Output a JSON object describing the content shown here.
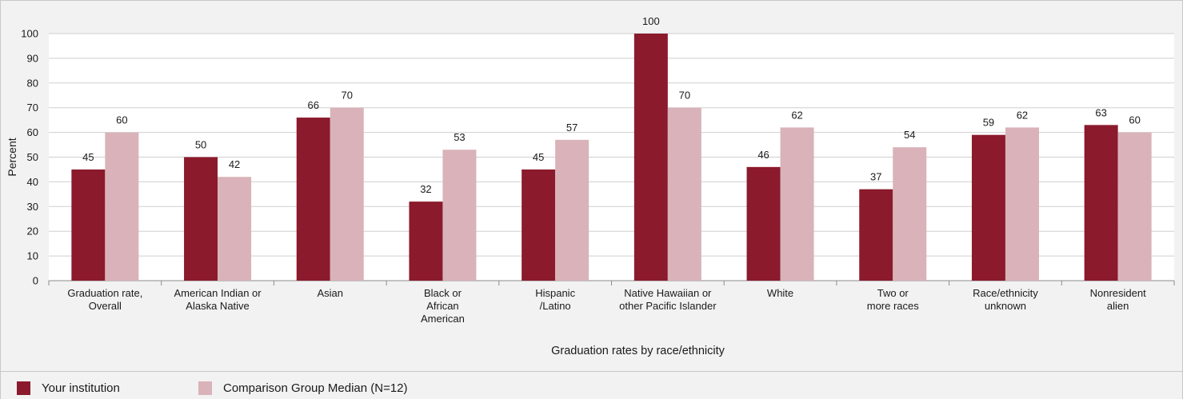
{
  "chart_data": {
    "type": "bar",
    "title": "",
    "xlabel": "Graduation rates by race/ethnicity",
    "ylabel": "Percent",
    "ylim": [
      0,
      100
    ],
    "yticks": [
      0,
      10,
      20,
      30,
      40,
      50,
      60,
      70,
      80,
      90,
      100
    ],
    "grid": true,
    "legend_position": "bottom",
    "categories": [
      [
        "Graduation rate,",
        "Overall"
      ],
      [
        "American Indian or",
        "Alaska Native"
      ],
      [
        "Asian"
      ],
      [
        "Black or",
        "African",
        "American"
      ],
      [
        "Hispanic",
        "/Latino"
      ],
      [
        "Native Hawaiian or",
        "other Pacific Islander"
      ],
      [
        "White"
      ],
      [
        "Two or",
        "more races"
      ],
      [
        "Race/ethnicity",
        "unknown"
      ],
      [
        "Nonresident",
        "alien"
      ]
    ],
    "series": [
      {
        "name": "Your institution",
        "color": "#8b1a2c",
        "values": [
          45,
          50,
          66,
          32,
          45,
          100,
          46,
          37,
          59,
          63
        ]
      },
      {
        "name": "Comparison Group Median (N=12)",
        "color": "#d9b3b9",
        "values": [
          60,
          42,
          70,
          53,
          57,
          70,
          62,
          54,
          62,
          60
        ]
      }
    ]
  }
}
